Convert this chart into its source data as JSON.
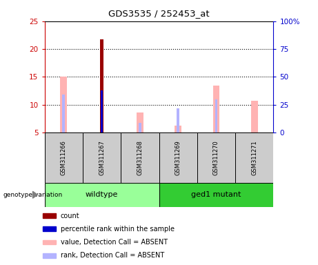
{
  "title": "GDS3535 / 252453_at",
  "samples": [
    "GSM311266",
    "GSM311267",
    "GSM311268",
    "GSM311269",
    "GSM311270",
    "GSM311271"
  ],
  "ylim_left": [
    5,
    25
  ],
  "ylim_right": [
    0,
    100
  ],
  "yticks_left": [
    5,
    10,
    15,
    20,
    25
  ],
  "ytick_labels_left": [
    "5",
    "10",
    "15",
    "20",
    "25"
  ],
  "yticks_right": [
    0,
    25,
    50,
    75,
    100
  ],
  "ytick_labels_right": [
    "0",
    "25",
    "50",
    "75",
    "100%"
  ],
  "colors": {
    "count_present": "#990000",
    "count_absent": "#ffb3b3",
    "rank_present": "#0000cc",
    "rank_absent": "#b3b3ff",
    "wildtype_bg": "#99ff99",
    "mutant_bg": "#33cc33",
    "sample_box_bg": "#cccccc"
  },
  "count_values": [
    null,
    21.7,
    null,
    null,
    null,
    null
  ],
  "count_absent_values": [
    15.0,
    null,
    8.6,
    6.3,
    13.4,
    10.7
  ],
  "rank_present_values": [
    null,
    12.6,
    null,
    null,
    null,
    null
  ],
  "rank_absent_values": [
    11.8,
    12.5,
    6.7,
    9.3,
    11.0,
    null
  ],
  "legend_items": [
    {
      "color": "#990000",
      "label": "count"
    },
    {
      "color": "#0000cc",
      "label": "percentile rank within the sample"
    },
    {
      "color": "#ffb3b3",
      "label": "value, Detection Call = ABSENT"
    },
    {
      "color": "#b3b3ff",
      "label": "rank, Detection Call = ABSENT"
    }
  ],
  "figsize": [
    4.61,
    3.84
  ],
  "dpi": 100
}
